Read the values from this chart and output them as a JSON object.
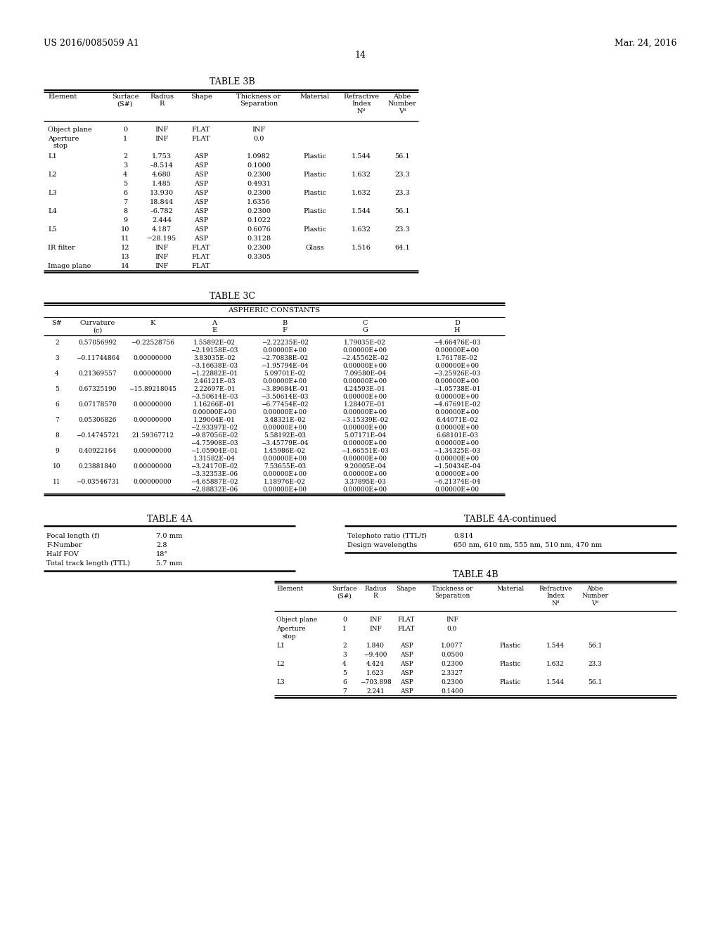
{
  "header_left": "US 2016/0085059 A1",
  "header_right": "Mar. 24, 2016",
  "page_number": "14",
  "bg_color": "#ffffff"
}
